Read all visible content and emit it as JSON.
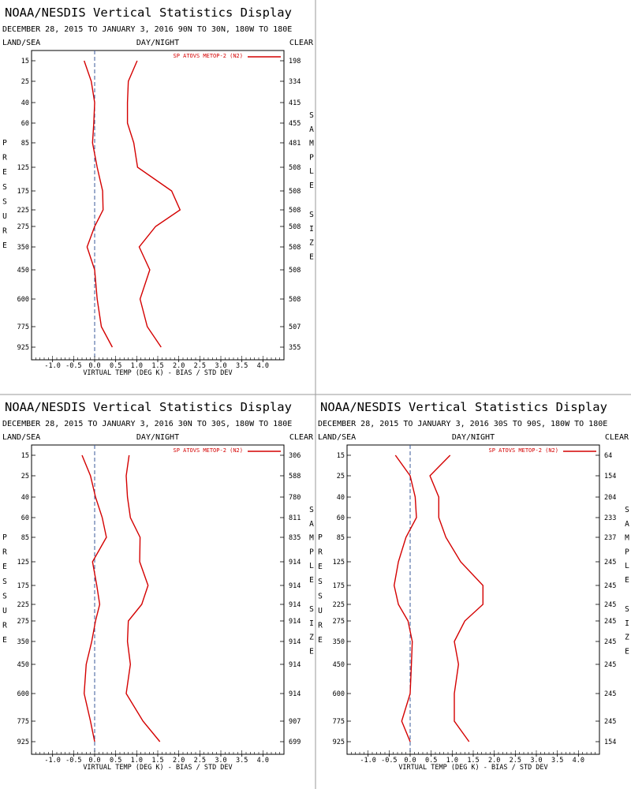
{
  "chart_data": [
    {
      "type": "line",
      "title": "NOAA/NESDIS Vertical Statistics Display",
      "subtitle": "DECEMBER 28, 2015 TO JANUARY 3, 2016  90N TO 30N, 180W TO 180E",
      "header_left": "LAND/SEA",
      "header_center": "DAY/NIGHT",
      "header_right": "CLEAR",
      "xlabel": "VIRTUAL TEMP (DEG K) - BIAS / STD DEV",
      "left_axis_label": "PRESSURE",
      "right_axis_label": "SAMPLE SIZE",
      "xlim": [
        -1.5,
        4.5
      ],
      "x_ticks": [
        "-1.0",
        "-0.5",
        "0.0",
        "0.5",
        "1.0",
        "1.5",
        "2.0",
        "2.5",
        "3.0",
        "3.5",
        "4.0"
      ],
      "pressure_levels": [
        "15",
        "25",
        "40",
        "60",
        "85",
        "125",
        "175",
        "225",
        "275",
        "350",
        "450",
        "600",
        "775",
        "925"
      ],
      "sample_size": [
        "198",
        "334",
        "415",
        "455",
        "481",
        "508",
        "508",
        "508",
        "508",
        "508",
        "508",
        "508",
        "507",
        "355"
      ],
      "legend": "SP ATOVS METOP-2 (N2)",
      "series": [
        {
          "name": "bias",
          "values": [
            -0.25,
            -0.08,
            0.0,
            -0.02,
            -0.05,
            0.06,
            0.19,
            0.2,
            0.0,
            -0.18,
            0.0,
            0.06,
            0.16,
            0.42
          ]
        },
        {
          "name": "std_dev",
          "values": [
            1.01,
            0.8,
            0.78,
            0.78,
            0.93,
            1.02,
            1.83,
            2.03,
            1.45,
            1.06,
            1.31,
            1.08,
            1.25,
            1.58
          ]
        }
      ]
    },
    {
      "type": "line",
      "title": "NOAA/NESDIS Vertical Statistics Display",
      "subtitle": "DECEMBER 28, 2015 TO JANUARY 3, 2016  30N TO 30S, 180W TO 180E",
      "header_left": "LAND/SEA",
      "header_center": "DAY/NIGHT",
      "header_right": "CLEAR",
      "xlabel": "VIRTUAL TEMP (DEG K) - BIAS / STD DEV",
      "left_axis_label": "PRESSURE",
      "right_axis_label": "SAMPLE SIZE",
      "xlim": [
        -1.5,
        4.5
      ],
      "x_ticks": [
        "-1.0",
        "-0.5",
        "0.0",
        "0.5",
        "1.0",
        "1.5",
        "2.0",
        "2.5",
        "3.0",
        "3.5",
        "4.0"
      ],
      "pressure_levels": [
        "15",
        "25",
        "40",
        "60",
        "85",
        "125",
        "175",
        "225",
        "275",
        "350",
        "450",
        "600",
        "775",
        "925"
      ],
      "sample_size": [
        "306",
        "588",
        "780",
        "811",
        "835",
        "914",
        "914",
        "914",
        "914",
        "914",
        "914",
        "914",
        "907",
        "699"
      ],
      "legend": "SP ATOVS METOP-2 (N2)",
      "series": [
        {
          "name": "bias",
          "values": [
            -0.3,
            -0.1,
            0.02,
            0.18,
            0.28,
            -0.05,
            0.05,
            0.12,
            0.02,
            -0.07,
            -0.2,
            -0.25,
            -0.1,
            0.0
          ]
        },
        {
          "name": "std_dev",
          "values": [
            0.82,
            0.75,
            0.78,
            0.85,
            1.08,
            1.07,
            1.27,
            1.12,
            0.8,
            0.78,
            0.85,
            0.75,
            1.15,
            1.55
          ]
        }
      ]
    },
    {
      "type": "line",
      "title": "NOAA/NESDIS Vertical Statistics Display",
      "subtitle": "DECEMBER 28, 2015 TO JANUARY 3, 2016  30S TO 90S, 180W TO 180E",
      "header_left": "LAND/SEA",
      "header_center": "DAY/NIGHT",
      "header_right": "CLEAR",
      "xlabel": "VIRTUAL TEMP (DEG K) - BIAS / STD DEV",
      "left_axis_label": "PRESSURE",
      "right_axis_label": "SAMPLE SIZE",
      "xlim": [
        -1.5,
        4.5
      ],
      "x_ticks": [
        "-1.0",
        "-0.5",
        "0.0",
        "0.5",
        "1.0",
        "1.5",
        "2.0",
        "2.5",
        "3.0",
        "3.5",
        "4.0"
      ],
      "pressure_levels": [
        "15",
        "25",
        "40",
        "60",
        "85",
        "125",
        "175",
        "225",
        "275",
        "350",
        "450",
        "600",
        "775",
        "925"
      ],
      "sample_size": [
        "64",
        "154",
        "204",
        "233",
        "237",
        "245",
        "245",
        "245",
        "245",
        "245",
        "245",
        "245",
        "245",
        "154"
      ],
      "legend": "SP ATOVS METOP-2 (N2)",
      "series": [
        {
          "name": "bias",
          "values": [
            -0.35,
            0.0,
            0.12,
            0.15,
            -0.1,
            -0.28,
            -0.38,
            -0.28,
            -0.05,
            0.05,
            0.03,
            0.0,
            -0.2,
            0.0
          ]
        },
        {
          "name": "std_dev",
          "values": [
            0.95,
            0.47,
            0.68,
            0.68,
            0.85,
            1.2,
            1.73,
            1.73,
            1.3,
            1.05,
            1.15,
            1.05,
            1.05,
            1.4
          ]
        }
      ]
    }
  ]
}
